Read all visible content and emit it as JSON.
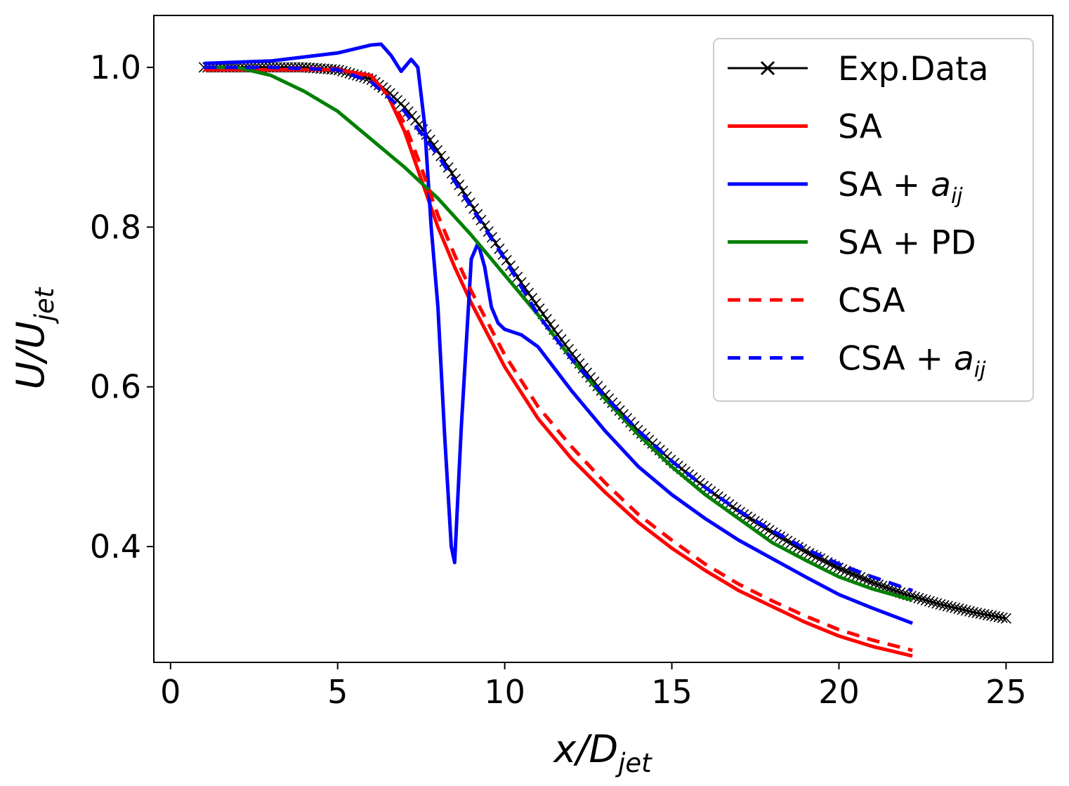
{
  "chart_data": {
    "type": "line",
    "title": "",
    "xlabel": "x/D",
    "xlabel_sub": "jet",
    "ylabel": "U/U",
    "ylabel_sub": "jet",
    "xlim": [
      -0.5,
      26.4
    ],
    "ylim": [
      0.255,
      1.065
    ],
    "xticks": [
      0,
      5,
      10,
      15,
      20,
      25
    ],
    "xtick_labels": [
      "0",
      "5",
      "10",
      "15",
      "20",
      "25"
    ],
    "yticks": [
      0.4,
      0.6,
      0.8,
      1.0
    ],
    "ytick_labels": [
      "0.4",
      "0.6",
      "0.8",
      "1.0"
    ],
    "legend_position": "top-right",
    "series": [
      {
        "name": "Exp.Data",
        "label": "Exp.Data",
        "sub": "",
        "color": "#000000",
        "dash": "",
        "marker": "x",
        "x": [
          1,
          2,
          3,
          4,
          5,
          6,
          6.5,
          7,
          7.5,
          8,
          8.5,
          9,
          9.5,
          10,
          10.5,
          11,
          11.5,
          12,
          12.5,
          13,
          14,
          15,
          16,
          17,
          18,
          19,
          20,
          21,
          22,
          23,
          24,
          25
        ],
        "y": [
          1.0,
          1.0,
          1.0,
          1.0,
          0.997,
          0.985,
          0.97,
          0.95,
          0.925,
          0.895,
          0.862,
          0.828,
          0.795,
          0.762,
          0.73,
          0.7,
          0.67,
          0.642,
          0.615,
          0.59,
          0.545,
          0.507,
          0.474,
          0.444,
          0.418,
          0.394,
          0.373,
          0.355,
          0.34,
          0.328,
          0.318,
          0.31
        ]
      },
      {
        "name": "SA",
        "label": "SA",
        "sub": "",
        "color": "#ff0000",
        "dash": "",
        "marker": "",
        "x": [
          1,
          3,
          5,
          6,
          6.5,
          7,
          7.5,
          8,
          8.5,
          9,
          9.5,
          10,
          11,
          12,
          13,
          14,
          15,
          16,
          17,
          18,
          19,
          20,
          21,
          22.2
        ],
        "y": [
          0.997,
          0.997,
          0.997,
          0.99,
          0.965,
          0.92,
          0.86,
          0.8,
          0.75,
          0.705,
          0.665,
          0.625,
          0.56,
          0.51,
          0.468,
          0.43,
          0.398,
          0.37,
          0.345,
          0.325,
          0.305,
          0.288,
          0.275,
          0.263
        ]
      },
      {
        "name": "SA + a_ij",
        "label": "SA + ",
        "sub": "ij",
        "color": "#0000ff",
        "dash": "",
        "marker": "",
        "x": [
          1,
          3,
          5,
          6,
          6.3,
          6.6,
          6.9,
          7.2,
          7.4,
          7.6,
          7.8,
          8.0,
          8.2,
          8.4,
          8.5,
          8.7,
          9.0,
          9.2,
          9.4,
          9.6,
          9.8,
          10.0,
          10.5,
          11,
          12,
          13,
          14,
          15,
          16,
          17,
          18,
          19,
          20,
          21,
          22.2
        ],
        "y": [
          1.005,
          1.008,
          1.018,
          1.028,
          1.029,
          1.015,
          0.995,
          1.01,
          1.0,
          0.93,
          0.8,
          0.7,
          0.54,
          0.4,
          0.38,
          0.55,
          0.76,
          0.78,
          0.75,
          0.7,
          0.68,
          0.672,
          0.665,
          0.65,
          0.595,
          0.545,
          0.5,
          0.465,
          0.435,
          0.408,
          0.385,
          0.362,
          0.34,
          0.323,
          0.304
        ]
      },
      {
        "name": "SA + PD",
        "label": "SA + PD",
        "sub": "",
        "color": "#008000",
        "dash": "",
        "marker": "",
        "x": [
          1,
          2,
          3,
          4,
          5,
          6,
          7,
          8,
          9,
          10,
          11,
          12,
          13,
          14,
          15,
          16,
          17,
          18,
          19,
          20,
          21,
          22.2
        ],
        "y": [
          1.0,
          1.0,
          0.99,
          0.97,
          0.945,
          0.91,
          0.875,
          0.836,
          0.79,
          0.74,
          0.69,
          0.635,
          0.585,
          0.54,
          0.5,
          0.465,
          0.435,
          0.405,
          0.383,
          0.362,
          0.347,
          0.333
        ]
      },
      {
        "name": "CSA",
        "label": "CSA",
        "sub": "",
        "color": "#ff0000",
        "dash": "18,12",
        "marker": "",
        "x": [
          1,
          3,
          5,
          6,
          6.5,
          7,
          7.5,
          8,
          8.5,
          9,
          9.5,
          10,
          11,
          12,
          13,
          14,
          15,
          16,
          17,
          18,
          19,
          20,
          21,
          22.2
        ],
        "y": [
          1.0,
          1.0,
          0.998,
          0.985,
          0.965,
          0.93,
          0.875,
          0.815,
          0.765,
          0.72,
          0.68,
          0.64,
          0.575,
          0.525,
          0.48,
          0.44,
          0.408,
          0.378,
          0.353,
          0.332,
          0.313,
          0.296,
          0.283,
          0.27
        ]
      },
      {
        "name": "CSA + a_ij",
        "label": "CSA + ",
        "sub": "ij",
        "color": "#0000ff",
        "dash": "18,12",
        "marker": "",
        "x": [
          1,
          3,
          5,
          6,
          7,
          8,
          9,
          10,
          11,
          12,
          13,
          14,
          15,
          16,
          17,
          18,
          19,
          20,
          21,
          22.2
        ],
        "y": [
          1.0,
          1.0,
          0.997,
          0.982,
          0.945,
          0.89,
          0.825,
          0.76,
          0.69,
          0.635,
          0.588,
          0.545,
          0.507,
          0.474,
          0.445,
          0.42,
          0.397,
          0.378,
          0.362,
          0.345
        ]
      }
    ]
  }
}
